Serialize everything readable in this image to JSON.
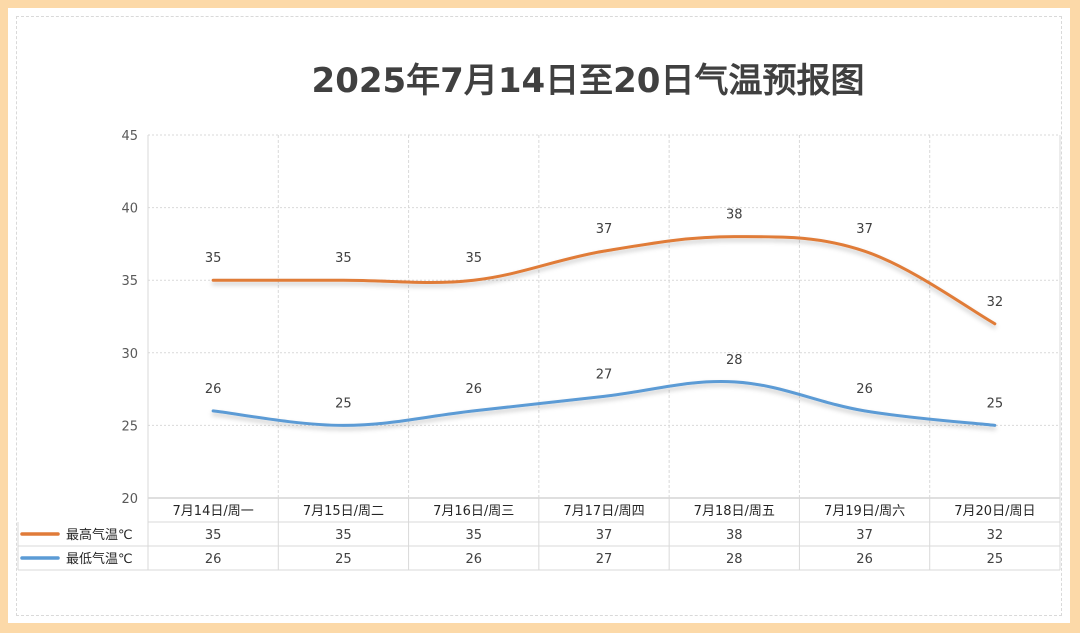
{
  "chart_data": {
    "type": "line",
    "title": "2025年7月14日至20日气温预报图",
    "categories": [
      "7月14日/周一",
      "7月15日/周二",
      "7月16日/周三",
      "7月17日/周四",
      "7月18日/周五",
      "7月19日/周六",
      "7月20日/周日"
    ],
    "series": [
      {
        "name": "最高气温℃",
        "values": [
          35,
          35,
          35,
          37,
          38,
          37,
          32
        ],
        "color": "#e07b39"
      },
      {
        "name": "最低气温℃",
        "values": [
          26,
          25,
          26,
          27,
          28,
          26,
          25
        ],
        "color": "#5b9bd5"
      }
    ],
    "ylim": [
      20,
      45
    ],
    "yticks": [
      "20",
      "25",
      "30",
      "35",
      "40",
      "45"
    ],
    "grid": true,
    "smooth": true,
    "data_table": true
  }
}
